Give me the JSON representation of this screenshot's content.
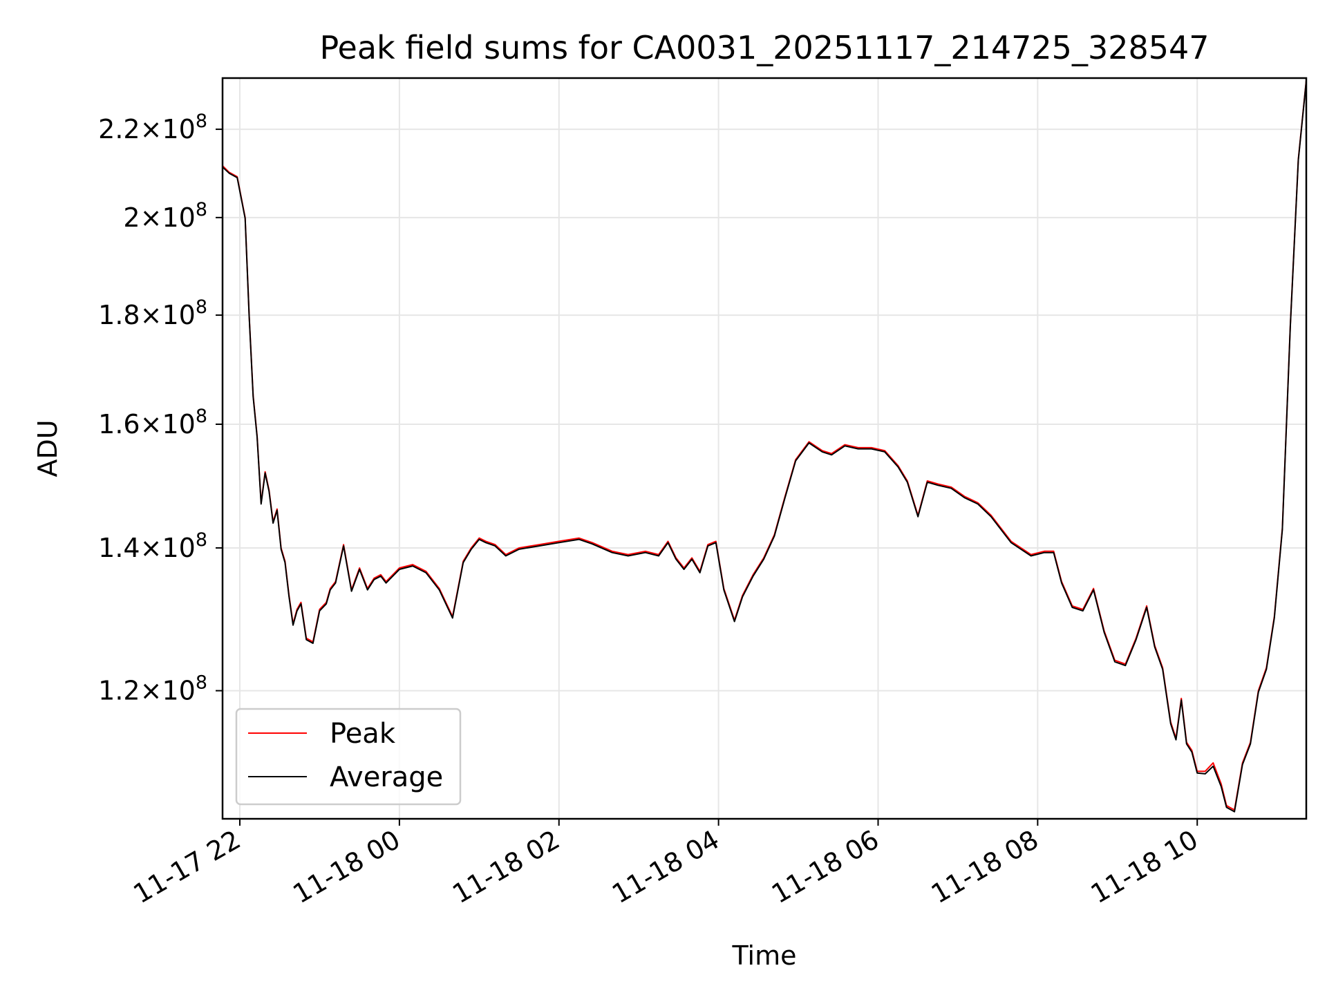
{
  "chart_data": {
    "type": "line",
    "title": "Peak field sums for CA0031_20251117_214725_328547",
    "xlabel": "Time",
    "ylabel": "ADU",
    "x_unit": "hours",
    "y_scale": "log",
    "xlim": [
      "2025-11-17 21:47",
      "2025-11-18 11:22"
    ],
    "ylim": [
      104500000,
      232500000
    ],
    "grid": true,
    "legend_position": "lower-left",
    "x_ticks": [
      {
        "at": "2025-11-17 22:00",
        "label": "11-17 22"
      },
      {
        "at": "2025-11-18 00:00",
        "label": "11-18 00"
      },
      {
        "at": "2025-11-18 02:00",
        "label": "11-18 02"
      },
      {
        "at": "2025-11-18 04:00",
        "label": "11-18 04"
      },
      {
        "at": "2025-11-18 06:00",
        "label": "11-18 06"
      },
      {
        "at": "2025-11-18 08:00",
        "label": "11-18 08"
      },
      {
        "at": "2025-11-18 10:00",
        "label": "11-18 10"
      }
    ],
    "y_ticks": [
      {
        "value": 120000000,
        "mantissa": "1.2",
        "exp": "8"
      },
      {
        "value": 140000000,
        "mantissa": "1.4",
        "exp": "8"
      },
      {
        "value": 160000000,
        "mantissa": "1.6",
        "exp": "8"
      },
      {
        "value": 180000000,
        "mantissa": "1.8",
        "exp": "8"
      },
      {
        "value": 200000000,
        "mantissa": "2",
        "exp": "8"
      },
      {
        "value": 220000000,
        "mantissa": "2.2",
        "exp": "8"
      }
    ],
    "x": [
      "2025-11-17 21:47",
      "2025-11-17 21:52",
      "2025-11-17 21:58",
      "2025-11-17 22:04",
      "2025-11-17 22:07",
      "2025-11-17 22:10",
      "2025-11-17 22:13",
      "2025-11-17 22:16",
      "2025-11-17 22:19",
      "2025-11-17 22:22",
      "2025-11-17 22:25",
      "2025-11-17 22:28",
      "2025-11-17 22:31",
      "2025-11-17 22:34",
      "2025-11-17 22:37",
      "2025-11-17 22:40",
      "2025-11-17 22:43",
      "2025-11-17 22:46",
      "2025-11-17 22:50",
      "2025-11-17 22:55",
      "2025-11-17 23:00",
      "2025-11-17 23:05",
      "2025-11-17 23:08",
      "2025-11-17 23:12",
      "2025-11-17 23:18",
      "2025-11-17 23:24",
      "2025-11-17 23:30",
      "2025-11-17 23:36",
      "2025-11-17 23:41",
      "2025-11-17 23:46",
      "2025-11-17 23:50",
      "2025-11-17 23:55",
      "2025-11-18 00:00",
      "2025-11-18 00:10",
      "2025-11-18 00:20",
      "2025-11-18 00:30",
      "2025-11-18 00:40",
      "2025-11-18 00:48",
      "2025-11-18 00:54",
      "2025-11-18 01:00",
      "2025-11-18 01:05",
      "2025-11-18 01:12",
      "2025-11-18 01:20",
      "2025-11-18 01:30",
      "2025-11-18 01:45",
      "2025-11-18 02:00",
      "2025-11-18 02:15",
      "2025-11-18 02:25",
      "2025-11-18 02:40",
      "2025-11-18 02:52",
      "2025-11-18 03:05",
      "2025-11-18 03:15",
      "2025-11-18 03:22",
      "2025-11-18 03:28",
      "2025-11-18 03:34",
      "2025-11-18 03:40",
      "2025-11-18 03:46",
      "2025-11-18 03:52",
      "2025-11-18 03:58",
      "2025-11-18 04:04",
      "2025-11-18 04:12",
      "2025-11-18 04:18",
      "2025-11-18 04:26",
      "2025-11-18 04:34",
      "2025-11-18 04:42",
      "2025-11-18 04:50",
      "2025-11-18 04:58",
      "2025-11-18 05:08",
      "2025-11-18 05:18",
      "2025-11-18 05:25",
      "2025-11-18 05:35",
      "2025-11-18 05:45",
      "2025-11-18 05:55",
      "2025-11-18 06:05",
      "2025-11-18 06:15",
      "2025-11-18 06:22",
      "2025-11-18 06:30",
      "2025-11-18 06:37",
      "2025-11-18 06:45",
      "2025-11-18 06:55",
      "2025-11-18 07:05",
      "2025-11-18 07:15",
      "2025-11-18 07:25",
      "2025-11-18 07:40",
      "2025-11-18 07:55",
      "2025-11-18 08:05",
      "2025-11-18 08:12",
      "2025-11-18 08:18",
      "2025-11-18 08:26",
      "2025-11-18 08:34",
      "2025-11-18 08:42",
      "2025-11-18 08:50",
      "2025-11-18 08:58",
      "2025-11-18 09:06",
      "2025-11-18 09:14",
      "2025-11-18 09:22",
      "2025-11-18 09:28",
      "2025-11-18 09:34",
      "2025-11-18 09:40",
      "2025-11-18 09:44",
      "2025-11-18 09:48",
      "2025-11-18 09:52",
      "2025-11-18 09:56",
      "2025-11-18 10:00",
      "2025-11-18 10:06",
      "2025-11-18 10:12",
      "2025-11-18 10:18",
      "2025-11-18 10:22",
      "2025-11-18 10:28",
      "2025-11-18 10:34",
      "2025-11-18 10:40",
      "2025-11-18 10:46",
      "2025-11-18 10:52",
      "2025-11-18 10:58",
      "2025-11-18 11:04",
      "2025-11-18 11:10",
      "2025-11-18 11:16",
      "2025-11-18 11:22"
    ],
    "series": [
      {
        "name": "Peak",
        "color": "#ff0000",
        "values": [
          211.5,
          210.0,
          209.0,
          200.0,
          180.0,
          165.0,
          158.0,
          147.0,
          152.0,
          149.0,
          144.0,
          146.0,
          140.0,
          138.0,
          133.0,
          129.0,
          131.0,
          132.0,
          127.0,
          126.5,
          131.0,
          132.0,
          134.0,
          135.0,
          140.5,
          133.8,
          137.0,
          134.0,
          135.5,
          136.0,
          135.0,
          136.0,
          137.0,
          137.5,
          136.5,
          134.0,
          130.0,
          138.0,
          140.0,
          141.5,
          141.0,
          140.5,
          139.0,
          140.0,
          140.5,
          141.0,
          141.5,
          140.8,
          139.5,
          139.0,
          139.5,
          139.0,
          141.0,
          138.5,
          137.0,
          138.5,
          136.5,
          140.5,
          141.0,
          134.0,
          129.5,
          133.0,
          136.0,
          138.5,
          142.0,
          148.0,
          154.0,
          157.0,
          155.5,
          155.0,
          156.5,
          156.0,
          156.0,
          155.5,
          153.0,
          150.5,
          145.0,
          150.5,
          150.0,
          149.5,
          148.0,
          147.0,
          145.0,
          141.0,
          139.0,
          139.5,
          139.5,
          135.0,
          131.5,
          131.0,
          134.0,
          128.0,
          124.0,
          123.5,
          127.0,
          131.5,
          126.0,
          123.0,
          116.0,
          114.0,
          119.0,
          113.5,
          112.5,
          110.0,
          110.0,
          111.0,
          108.5,
          106.0,
          105.5,
          111.0,
          113.5,
          120.0,
          123.0,
          130.0,
          143.0,
          178.0,
          213.0,
          232.0
        ]
      },
      {
        "name": "Average",
        "color": "#000000",
        "values": [
          211.2,
          209.8,
          208.8,
          199.8,
          179.8,
          164.8,
          157.8,
          146.8,
          151.8,
          148.8,
          143.8,
          145.8,
          139.8,
          137.8,
          132.8,
          128.8,
          130.8,
          131.8,
          126.8,
          126.3,
          130.8,
          131.8,
          133.8,
          134.8,
          140.3,
          133.6,
          136.8,
          133.8,
          135.3,
          135.8,
          134.8,
          135.8,
          136.8,
          137.3,
          136.3,
          133.8,
          129.8,
          137.8,
          139.8,
          141.3,
          140.8,
          140.3,
          138.8,
          139.8,
          140.3,
          140.8,
          141.3,
          140.6,
          139.3,
          138.8,
          139.3,
          138.8,
          140.8,
          138.3,
          136.8,
          138.3,
          136.3,
          140.3,
          140.8,
          133.8,
          129.3,
          132.8,
          135.8,
          138.3,
          141.8,
          147.8,
          153.8,
          156.8,
          155.3,
          154.8,
          156.3,
          155.8,
          155.8,
          155.3,
          152.8,
          150.3,
          144.8,
          150.3,
          149.8,
          149.3,
          147.8,
          146.8,
          144.8,
          140.8,
          138.8,
          139.3,
          139.3,
          134.8,
          131.3,
          130.8,
          133.8,
          127.8,
          123.8,
          123.3,
          126.8,
          131.3,
          125.8,
          122.8,
          115.8,
          113.8,
          118.8,
          113.3,
          112.3,
          109.8,
          109.7,
          110.6,
          108.2,
          105.8,
          105.3,
          110.8,
          113.3,
          119.8,
          122.8,
          129.8,
          142.8,
          177.8,
          212.8,
          231.8
        ]
      }
    ],
    "values_unit": "ADU (millions)"
  }
}
